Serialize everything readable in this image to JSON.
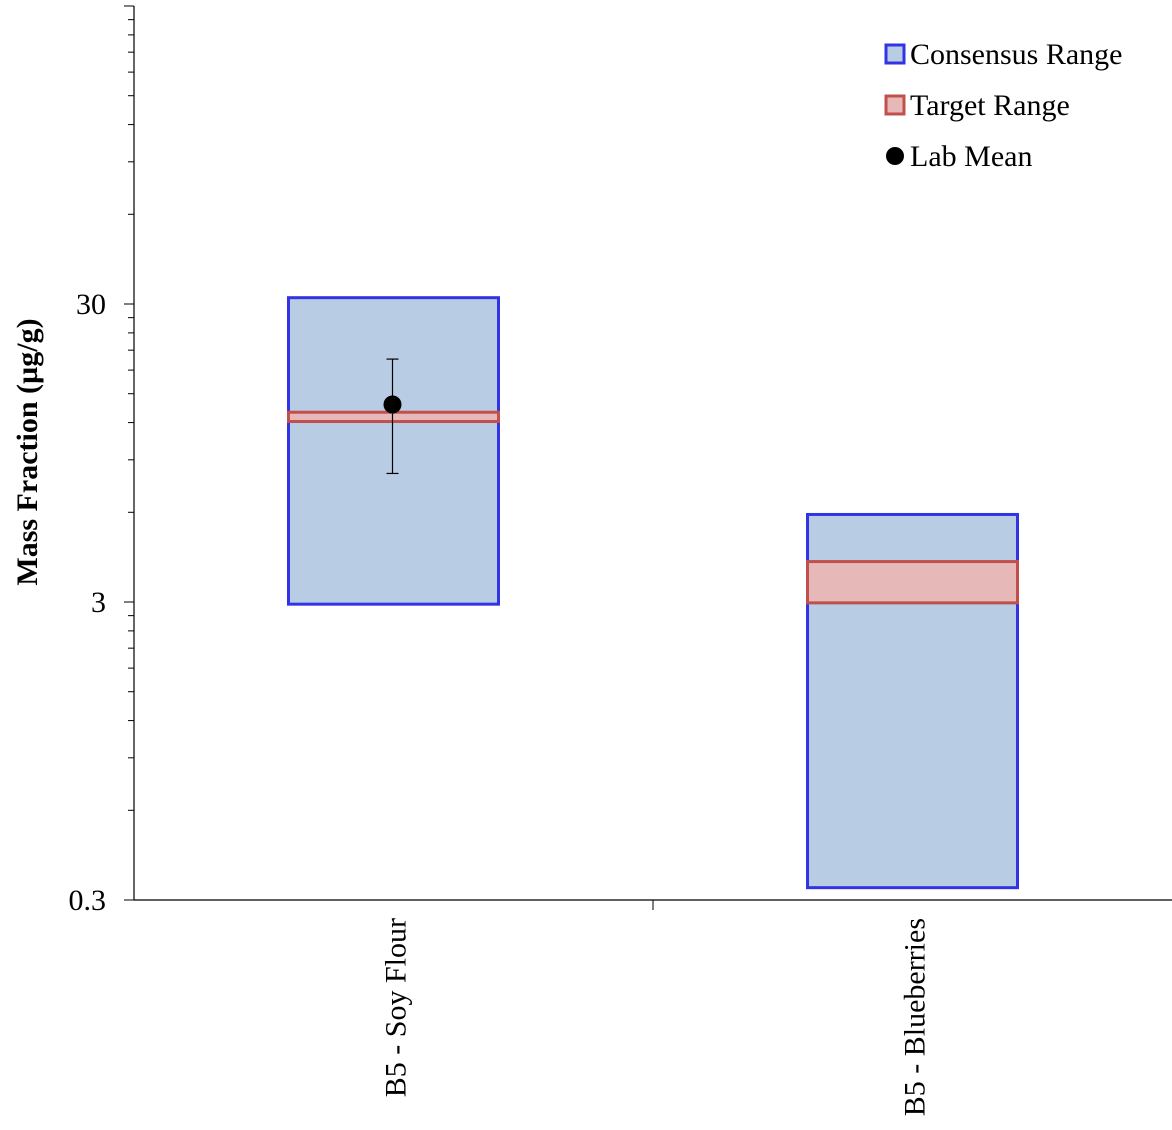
{
  "chart_data": {
    "type": "range-box",
    "ylabel": "Mass Fraction (µg/g)",
    "yscale": "log",
    "ylim": [
      0.3,
      300
    ],
    "yticks": [
      {
        "value": 0.3,
        "label": "0.3"
      },
      {
        "value": 3,
        "label": "3"
      },
      {
        "value": 30,
        "label": "30"
      }
    ],
    "categories": [
      "B5 - Soy Flour",
      "B5 - Blueberries"
    ],
    "series": [
      {
        "name": "Consensus Range",
        "fill": "#b8cce4",
        "stroke": "#3333e6",
        "ranges": [
          [
            2.95,
            31.5
          ],
          [
            0.33,
            5.9
          ]
        ]
      },
      {
        "name": "Target Range",
        "fill": "#e6b9b8",
        "stroke": "#c0504d",
        "ranges": [
          [
            12.1,
            13.0
          ],
          [
            2.98,
            4.1
          ]
        ]
      },
      {
        "name": "Lab Mean",
        "color": "#000000",
        "points": [
          {
            "category": "B5 - Soy Flour",
            "value": 13.8,
            "error_low": 8.1,
            "error_high": 19.6
          }
        ]
      }
    ],
    "legend": "top-right",
    "grid": false
  }
}
